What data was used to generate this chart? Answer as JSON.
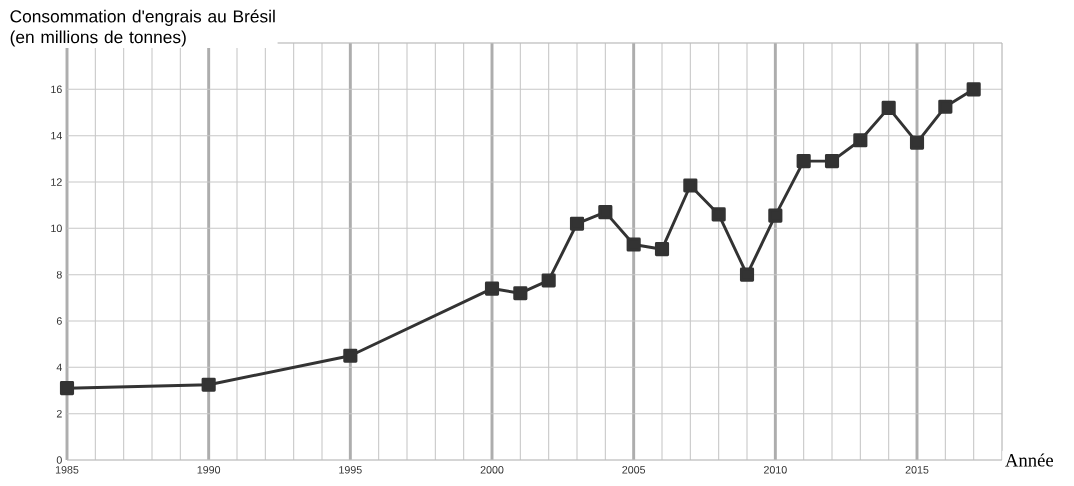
{
  "chart_data": {
    "type": "line",
    "ylabel": "Consommation d'engrais au Brésil (en millions de tonnes)",
    "xlabel": "Année",
    "x": [
      1985,
      1990,
      1995,
      2000,
      2001,
      2002,
      2003,
      2004,
      2005,
      2006,
      2007,
      2008,
      2009,
      2010,
      2011,
      2012,
      2013,
      2014,
      2015,
      2016,
      2017
    ],
    "series": [
      {
        "color": "#333333",
        "values": [
          3.1,
          3.25,
          4.5,
          7.4,
          7.2,
          7.75,
          10.2,
          10.7,
          9.3,
          9.1,
          11.85,
          10.6,
          8.0,
          10.55,
          12.9,
          12.9,
          13.8,
          15.2,
          13.7,
          15.25,
          16.0
        ]
      }
    ],
    "xlim": [
      1985,
      2018
    ],
    "ylim": [
      0,
      18
    ],
    "xticks": [
      1985,
      {
        "value": 1986,
        "label": null
      },
      {
        "value": 1987,
        "label": null
      },
      {
        "value": 1988,
        "label": null
      },
      {
        "value": 1989,
        "label": null
      },
      1990,
      {
        "value": 1991,
        "label": null
      },
      {
        "value": 1992,
        "label": null
      },
      {
        "value": 1993,
        "label": null
      },
      {
        "value": 1994,
        "label": null
      },
      1995,
      {
        "value": 1996,
        "label": null
      },
      {
        "value": 1997,
        "label": null
      },
      {
        "value": 1998,
        "label": null
      },
      {
        "value": 1999,
        "label": null
      },
      2000,
      {
        "value": 2001,
        "label": null
      },
      {
        "value": 2002,
        "label": null
      },
      {
        "value": 2003,
        "label": null
      },
      {
        "value": 2004,
        "label": null
      },
      2005,
      {
        "value": 2006,
        "label": null
      },
      {
        "value": 2007,
        "label": null
      },
      {
        "value": 2008,
        "label": null
      },
      {
        "value": 2009,
        "label": null
      },
      2010,
      {
        "value": 2011,
        "label": null
      },
      {
        "value": 2012,
        "label": null
      },
      {
        "value": 2013,
        "label": null
      },
      {
        "value": 2014,
        "label": null
      },
      2015,
      {
        "value": 2016,
        "label": null
      },
      {
        "value": 2017,
        "label": null
      },
      {
        "value": 2018,
        "label": null
      }
    ],
    "yticks": [
      0,
      2,
      4,
      6,
      8,
      10,
      12,
      14,
      16,
      {
        "value": 18,
        "label": null
      }
    ],
    "grid": true,
    "marker": "square",
    "line_style": "solid"
  }
}
